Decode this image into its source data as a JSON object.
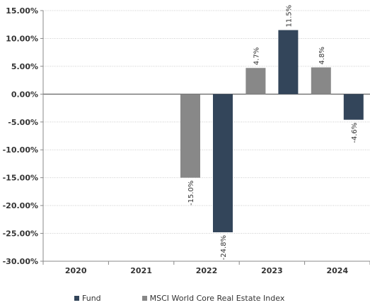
{
  "chart_data": {
    "type": "bar",
    "categories": [
      "2020",
      "2021",
      "2022",
      "2023",
      "2024"
    ],
    "series": [
      {
        "name": "MSCI World Core Real Estate Index",
        "color": "#888888",
        "values": [
          null,
          null,
          -15.0,
          4.7,
          4.8
        ],
        "labels": [
          "",
          "",
          "-15.0%",
          "4.7%",
          "4.8%"
        ]
      },
      {
        "name": "Fund",
        "color": "#33455a",
        "values": [
          null,
          null,
          -24.8,
          11.5,
          -4.6
        ],
        "labels": [
          "",
          "",
          "-24.8%",
          "11.5%",
          "-4.6%"
        ]
      }
    ],
    "ylim": [
      -30,
      15
    ],
    "yticks": [
      15,
      10,
      5,
      0,
      -5,
      -10,
      -15,
      -20,
      -25,
      -30
    ],
    "ytick_labels": [
      "15.00%",
      "10.00%",
      "5.00%",
      "0.00%",
      "-5.00%",
      "-10.00%",
      "-15.00%",
      "-20.00%",
      "-25.00%",
      "-30.00%"
    ],
    "grid": true,
    "legend_position": "bottom",
    "legend": [
      {
        "name": "Fund",
        "color": "#33455a"
      },
      {
        "name": "MSCI World Core Real Estate Index",
        "color": "#888888"
      }
    ]
  }
}
